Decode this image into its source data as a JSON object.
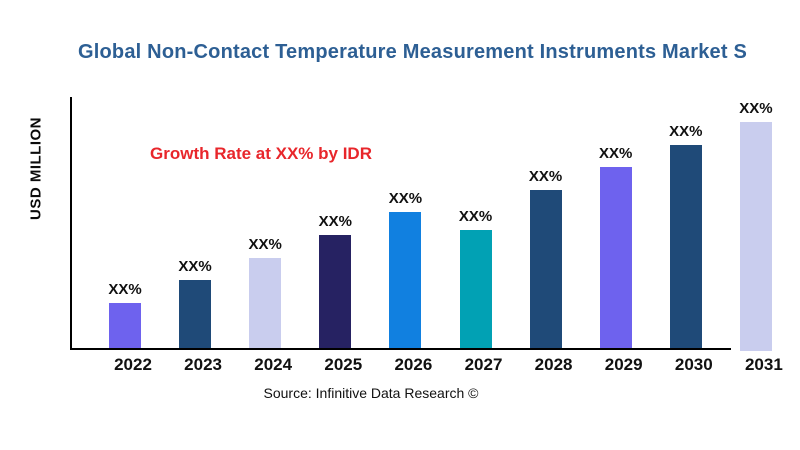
{
  "chart_data": {
    "type": "bar",
    "title": "Global Non-Contact Temperature Measurement Instruments  Market S",
    "title_truncated_at_right_edge": true,
    "ylabel": "USD MILLION",
    "xlabel": "",
    "categories": [
      "2022",
      "2023",
      "2024",
      "2025",
      "2026",
      "2027",
      "2028",
      "2029",
      "2030",
      "2031"
    ],
    "values": [
      20,
      30,
      40,
      50,
      60,
      52,
      70,
      80,
      90,
      100
    ],
    "values_are_relative_estimates": true,
    "data_labels": [
      "XX%",
      "XX%",
      "XX%",
      "XX%",
      "XX%",
      "XX%",
      "XX%",
      "XX%",
      "XX%",
      "XX%"
    ],
    "bar_colors": [
      "#6e62ee",
      "#1f4a78",
      "#c9cdee",
      "#262262",
      "#1180e0",
      "#01a1b4",
      "#1f4a78",
      "#6e62ee",
      "#1f4a78",
      "#c9cdee"
    ],
    "annotation": "Growth Rate at XX% by IDR",
    "source": "Source: Infinitive Data Research ©",
    "grid": false,
    "legend": false,
    "yticks": [],
    "colors": {
      "title": "#2d5f94",
      "annotation": "#e8262b",
      "axis": "#000000",
      "labels": "#111111",
      "background": "#ffffff"
    }
  }
}
